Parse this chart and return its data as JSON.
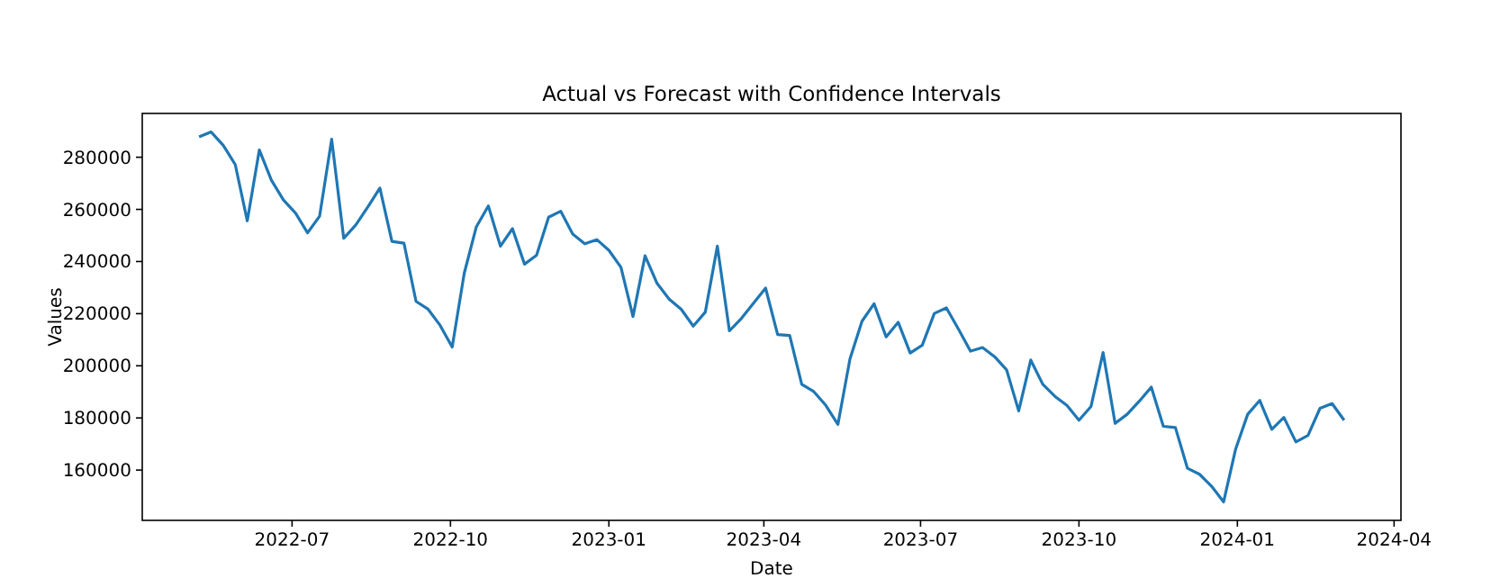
{
  "chart_data": {
    "type": "line",
    "title": "Actual vs Forecast with Confidence Intervals",
    "xlabel": "Date",
    "ylabel": "Values",
    "x": [
      "2022-05-08",
      "2022-05-15",
      "2022-05-22",
      "2022-05-29",
      "2022-06-05",
      "2022-06-12",
      "2022-06-19",
      "2022-06-26",
      "2022-07-03",
      "2022-07-10",
      "2022-07-17",
      "2022-07-24",
      "2022-07-31",
      "2022-08-07",
      "2022-08-14",
      "2022-08-21",
      "2022-08-28",
      "2022-09-04",
      "2022-09-11",
      "2022-09-18",
      "2022-09-25",
      "2022-10-02",
      "2022-10-09",
      "2022-10-16",
      "2022-10-23",
      "2022-10-30",
      "2022-11-06",
      "2022-11-13",
      "2022-11-20",
      "2022-11-27",
      "2022-12-04",
      "2022-12-11",
      "2022-12-18",
      "2022-12-25",
      "2023-01-01",
      "2023-01-08",
      "2023-01-15",
      "2023-01-22",
      "2023-01-29",
      "2023-02-05",
      "2023-02-12",
      "2023-02-19",
      "2023-02-26",
      "2023-03-05",
      "2023-03-12",
      "2023-03-19",
      "2023-03-26",
      "2023-04-02",
      "2023-04-09",
      "2023-04-16",
      "2023-04-23",
      "2023-04-30",
      "2023-05-07",
      "2023-05-14",
      "2023-05-21",
      "2023-05-28",
      "2023-06-04",
      "2023-06-11",
      "2023-06-18",
      "2023-06-25",
      "2023-07-02",
      "2023-07-09",
      "2023-07-16",
      "2023-07-23",
      "2023-07-30",
      "2023-08-06",
      "2023-08-13",
      "2023-08-20",
      "2023-08-27",
      "2023-09-03",
      "2023-09-10",
      "2023-09-17",
      "2023-09-24",
      "2023-10-01",
      "2023-10-08",
      "2023-10-15",
      "2023-10-22",
      "2023-10-29",
      "2023-11-05",
      "2023-11-12",
      "2023-11-19",
      "2023-11-26",
      "2023-12-03",
      "2023-12-10",
      "2023-12-17",
      "2023-12-24",
      "2023-12-31",
      "2024-01-07",
      "2024-01-14",
      "2024-01-21",
      "2024-01-28",
      "2024-02-04",
      "2024-02-11",
      "2024-02-18",
      "2024-02-25",
      "2024-03-03"
    ],
    "series": [
      {
        "color": "#1f77b4",
        "values": [
          287800,
          289700,
          284600,
          277200,
          255600,
          282800,
          271200,
          263600,
          258600,
          251000,
          257400,
          286900,
          248900,
          254000,
          260900,
          268200,
          247700,
          247000,
          224700,
          221700,
          215500,
          207200,
          235500,
          253300,
          261300,
          245900,
          252600,
          239000,
          242400,
          257000,
          259300,
          250500,
          246800,
          248400,
          244300,
          237800,
          218900,
          242200,
          231600,
          225600,
          221700,
          215200,
          220600,
          245900,
          213400,
          218200,
          224000,
          229800,
          212000,
          211600,
          192900,
          190100,
          184800,
          177500,
          202600,
          217100,
          223800,
          211100,
          216700,
          204900,
          207900,
          220100,
          222200,
          214100,
          205600,
          207000,
          203500,
          198400,
          182700,
          202200,
          192900,
          188300,
          184800,
          179100,
          184400,
          205100,
          177900,
          181400,
          186400,
          191800,
          176800,
          176300,
          160700,
          158400,
          153800,
          147800,
          168100,
          181400,
          186700,
          175600,
          180200,
          170800,
          173300,
          183700,
          185500,
          179100
        ]
      }
    ],
    "xlim": [
      "2022-04-05",
      "2024-04-05"
    ],
    "xticks": [
      {
        "value": "2022-07-01",
        "label": "2022-07"
      },
      {
        "value": "2022-10-01",
        "label": "2022-10"
      },
      {
        "value": "2023-01-01",
        "label": "2023-01"
      },
      {
        "value": "2023-04-01",
        "label": "2023-04"
      },
      {
        "value": "2023-07-01",
        "label": "2023-07"
      },
      {
        "value": "2023-10-01",
        "label": "2023-10"
      },
      {
        "value": "2024-01-01",
        "label": "2024-01"
      },
      {
        "value": "2024-04-01",
        "label": "2024-04"
      }
    ],
    "ylim": [
      140700,
      296800
    ],
    "yticks": [
      160000,
      180000,
      200000,
      220000,
      240000,
      260000,
      280000
    ],
    "grid": false
  }
}
